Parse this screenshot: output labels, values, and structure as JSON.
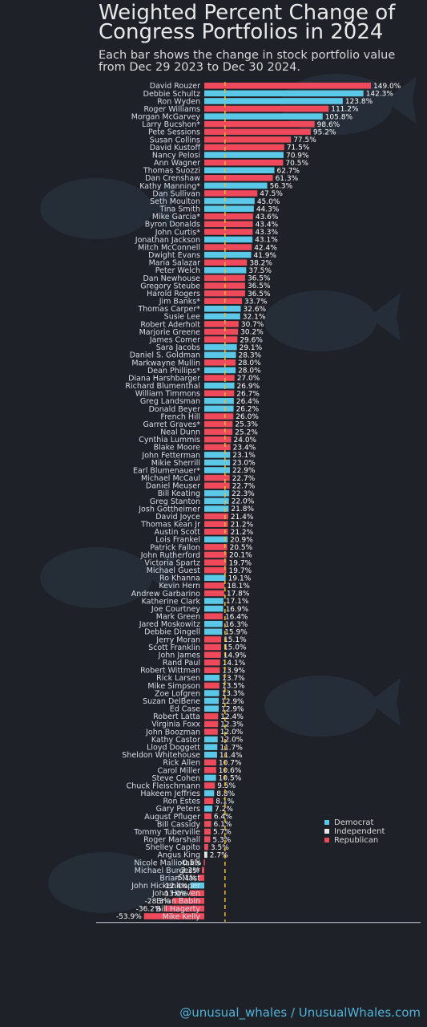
{
  "title": "Weighted Percent Change of Congress Portfolios in 2024",
  "subtitle": "Each bar shows the change in stock portfolio value from Dec 29 2023 to Dec 30 2024.",
  "footer": "@unusual_whales / UnusualWhales.com",
  "colors": {
    "Democrat": "#5bc8e8",
    "Independent": "#e8e8e8",
    "Republican": "#ee4a5c",
    "mean_line": "#f0b83a",
    "background": "#1e2128"
  },
  "chart_data": {
    "type": "bar",
    "orientation": "horizontal",
    "xlim": [
      -60,
      152
    ],
    "mean_line_x": 18.5,
    "legend": {
      "position": "right",
      "entries": [
        {
          "label": "Democrat",
          "color": "#5bc8e8"
        },
        {
          "label": "Independent",
          "color": "#e8e8e8"
        },
        {
          "label": "Republican",
          "color": "#ee4a5c"
        }
      ]
    },
    "bars": [
      {
        "name": "David Rouzer",
        "value": 149.0,
        "label": "149.0%",
        "party": "Republican"
      },
      {
        "name": "Debbie Schultz",
        "value": 142.3,
        "label": "142.3%",
        "party": "Democrat"
      },
      {
        "name": "Ron Wyden",
        "value": 123.8,
        "label": "123.8%",
        "party": "Democrat"
      },
      {
        "name": "Roger Williams",
        "value": 111.2,
        "label": "111.2%",
        "party": "Republican"
      },
      {
        "name": "Morgan McGarvey",
        "value": 105.8,
        "label": "105.8%",
        "party": "Democrat"
      },
      {
        "name": "Larry Bucshon*",
        "value": 98.6,
        "label": "98.6%",
        "party": "Republican"
      },
      {
        "name": "Pete Sessions",
        "value": 95.2,
        "label": "95.2%",
        "party": "Republican"
      },
      {
        "name": "Susan Collins",
        "value": 77.5,
        "label": "77.5%",
        "party": "Republican"
      },
      {
        "name": "David Kustoff",
        "value": 71.5,
        "label": "71.5%",
        "party": "Republican"
      },
      {
        "name": "Nancy Pelosi",
        "value": 70.9,
        "label": "70.9%",
        "party": "Democrat"
      },
      {
        "name": "Ann Wagner",
        "value": 70.5,
        "label": "70.5%",
        "party": "Republican"
      },
      {
        "name": "Thomas Suozzi",
        "value": 62.7,
        "label": "62.7%",
        "party": "Democrat"
      },
      {
        "name": "Dan Crenshaw",
        "value": 61.3,
        "label": "61.3%",
        "party": "Republican"
      },
      {
        "name": "Kathy Manning*",
        "value": 56.3,
        "label": "56.3%",
        "party": "Democrat"
      },
      {
        "name": "Dan Sullivan",
        "value": 47.5,
        "label": "47.5%",
        "party": "Republican"
      },
      {
        "name": "Seth Moulton",
        "value": 45.0,
        "label": "45.0%",
        "party": "Democrat"
      },
      {
        "name": "Tina Smith",
        "value": 44.3,
        "label": "44.3%",
        "party": "Democrat"
      },
      {
        "name": "Mike Garcia*",
        "value": 43.6,
        "label": "43.6%",
        "party": "Republican"
      },
      {
        "name": "Byron Donalds",
        "value": 43.4,
        "label": "43.4%",
        "party": "Republican"
      },
      {
        "name": "John Curtis*",
        "value": 43.3,
        "label": "43.3%",
        "party": "Republican"
      },
      {
        "name": "Jonathan Jackson",
        "value": 43.1,
        "label": "43.1%",
        "party": "Democrat"
      },
      {
        "name": "Mitch McConnell",
        "value": 42.4,
        "label": "42.4%",
        "party": "Republican"
      },
      {
        "name": "Dwight Evans",
        "value": 41.9,
        "label": "41.9%",
        "party": "Democrat"
      },
      {
        "name": "Maria Salazar",
        "value": 38.2,
        "label": "38.2%",
        "party": "Republican"
      },
      {
        "name": "Peter Welch",
        "value": 37.5,
        "label": "37.5%",
        "party": "Democrat"
      },
      {
        "name": "Dan Newhouse",
        "value": 36.5,
        "label": "36.5%",
        "party": "Republican"
      },
      {
        "name": "Gregory Steube",
        "value": 36.5,
        "label": "36.5%",
        "party": "Republican"
      },
      {
        "name": "Harold Rogers",
        "value": 36.5,
        "label": "36.5%",
        "party": "Republican"
      },
      {
        "name": "Jim Banks*",
        "value": 33.7,
        "label": "33.7%",
        "party": "Republican"
      },
      {
        "name": "Thomas Carper*",
        "value": 32.6,
        "label": "32.6%",
        "party": "Democrat"
      },
      {
        "name": "Susie Lee",
        "value": 32.1,
        "label": "32.1%",
        "party": "Democrat"
      },
      {
        "name": "Robert Aderholt",
        "value": 30.7,
        "label": "30.7%",
        "party": "Republican"
      },
      {
        "name": "Marjorie Greene",
        "value": 30.2,
        "label": "30.2%",
        "party": "Republican"
      },
      {
        "name": "James Comer",
        "value": 29.6,
        "label": "29.6%",
        "party": "Republican"
      },
      {
        "name": "Sara Jacobs",
        "value": 29.1,
        "label": "29.1%",
        "party": "Democrat"
      },
      {
        "name": "Daniel S. Goldman",
        "value": 28.3,
        "label": "28.3%",
        "party": "Democrat"
      },
      {
        "name": "Markwayne Mullin",
        "value": 28.0,
        "label": "28.0%",
        "party": "Republican"
      },
      {
        "name": "Dean Phillips*",
        "value": 28.0,
        "label": "28.0%",
        "party": "Democrat"
      },
      {
        "name": "Diana Harshbarger",
        "value": 27.0,
        "label": "27.0%",
        "party": "Republican"
      },
      {
        "name": "Richard Blumenthal",
        "value": 26.9,
        "label": "26.9%",
        "party": "Democrat"
      },
      {
        "name": "William Timmons",
        "value": 26.7,
        "label": "26.7%",
        "party": "Republican"
      },
      {
        "name": "Greg Landsman",
        "value": 26.4,
        "label": "26.4%",
        "party": "Democrat"
      },
      {
        "name": "Donald Beyer",
        "value": 26.2,
        "label": "26.2%",
        "party": "Democrat"
      },
      {
        "name": "French Hill",
        "value": 26.0,
        "label": "26.0%",
        "party": "Republican"
      },
      {
        "name": "Garret Graves*",
        "value": 25.3,
        "label": "25.3%",
        "party": "Republican"
      },
      {
        "name": "Neal Dunn",
        "value": 25.2,
        "label": "25.2%",
        "party": "Republican"
      },
      {
        "name": "Cynthia Lummis",
        "value": 24.0,
        "label": "24.0%",
        "party": "Republican"
      },
      {
        "name": "Blake Moore",
        "value": 23.4,
        "label": "23.4%",
        "party": "Republican"
      },
      {
        "name": "John Fetterman",
        "value": 23.1,
        "label": "23.1%",
        "party": "Democrat"
      },
      {
        "name": "Mikie Sherrill",
        "value": 23.0,
        "label": "23.0%",
        "party": "Democrat"
      },
      {
        "name": "Earl Blumenauer*",
        "value": 22.9,
        "label": "22.9%",
        "party": "Democrat"
      },
      {
        "name": "Michael McCaul",
        "value": 22.7,
        "label": "22.7%",
        "party": "Republican"
      },
      {
        "name": "Daniel Meuser",
        "value": 22.7,
        "label": "22.7%",
        "party": "Republican"
      },
      {
        "name": "Bill Keating",
        "value": 22.3,
        "label": "22.3%",
        "party": "Democrat"
      },
      {
        "name": "Greg Stanton",
        "value": 22.0,
        "label": "22.0%",
        "party": "Democrat"
      },
      {
        "name": "Josh Gottheimer",
        "value": 21.8,
        "label": "21.8%",
        "party": "Democrat"
      },
      {
        "name": "David Joyce",
        "value": 21.4,
        "label": "21.4%",
        "party": "Republican"
      },
      {
        "name": "Thomas Kean Jr",
        "value": 21.2,
        "label": "21.2%",
        "party": "Republican"
      },
      {
        "name": "Austin Scott",
        "value": 21.2,
        "label": "21.2%",
        "party": "Republican"
      },
      {
        "name": "Lois Frankel",
        "value": 20.9,
        "label": "20.9%",
        "party": "Democrat"
      },
      {
        "name": "Patrick Fallon",
        "value": 20.5,
        "label": "20.5%",
        "party": "Republican"
      },
      {
        "name": "John Rutherford",
        "value": 20.1,
        "label": "20.1%",
        "party": "Republican"
      },
      {
        "name": "Victoria Spartz",
        "value": 19.7,
        "label": "19.7%",
        "party": "Republican"
      },
      {
        "name": "Michael Guest",
        "value": 19.7,
        "label": "19.7%",
        "party": "Republican"
      },
      {
        "name": "Ro Khanna",
        "value": 19.1,
        "label": "19.1%",
        "party": "Democrat"
      },
      {
        "name": "Kevin Hern",
        "value": 18.1,
        "label": "18.1%",
        "party": "Republican"
      },
      {
        "name": "Andrew Garbarino",
        "value": 17.8,
        "label": "17.8%",
        "party": "Republican"
      },
      {
        "name": "Katherine Clark",
        "value": 17.1,
        "label": "17.1%",
        "party": "Democrat"
      },
      {
        "name": "Joe Courtney",
        "value": 16.9,
        "label": "16.9%",
        "party": "Democrat"
      },
      {
        "name": "Mark Green",
        "value": 16.4,
        "label": "16.4%",
        "party": "Republican"
      },
      {
        "name": "Jared Moskowitz",
        "value": 16.3,
        "label": "16.3%",
        "party": "Democrat"
      },
      {
        "name": "Debbie Dingell",
        "value": 15.9,
        "label": "15.9%",
        "party": "Democrat"
      },
      {
        "name": "Jerry Moran",
        "value": 15.1,
        "label": "15.1%",
        "party": "Republican"
      },
      {
        "name": "Scott Franklin",
        "value": 15.0,
        "label": "15.0%",
        "party": "Republican"
      },
      {
        "name": "John James",
        "value": 14.9,
        "label": "14.9%",
        "party": "Republican"
      },
      {
        "name": "Rand Paul",
        "value": 14.1,
        "label": "14.1%",
        "party": "Republican"
      },
      {
        "name": "Robert Wittman",
        "value": 13.9,
        "label": "13.9%",
        "party": "Republican"
      },
      {
        "name": "Rick Larsen",
        "value": 13.7,
        "label": "13.7%",
        "party": "Democrat"
      },
      {
        "name": "Mike Simpson",
        "value": 13.5,
        "label": "13.5%",
        "party": "Republican"
      },
      {
        "name": "Zoe Lofgren",
        "value": 13.3,
        "label": "13.3%",
        "party": "Democrat"
      },
      {
        "name": "Suzan DelBene",
        "value": 12.9,
        "label": "12.9%",
        "party": "Democrat"
      },
      {
        "name": "Ed Case",
        "value": 12.9,
        "label": "12.9%",
        "party": "Democrat"
      },
      {
        "name": "Robert Latta",
        "value": 12.4,
        "label": "12.4%",
        "party": "Republican"
      },
      {
        "name": "Virginia Foxx",
        "value": 12.3,
        "label": "12.3%",
        "party": "Republican"
      },
      {
        "name": "John Boozman",
        "value": 12.0,
        "label": "12.0%",
        "party": "Republican"
      },
      {
        "name": "Kathy Castor",
        "value": 12.0,
        "label": "12.0%",
        "party": "Democrat"
      },
      {
        "name": "Lloyd Doggett",
        "value": 11.7,
        "label": "11.7%",
        "party": "Democrat"
      },
      {
        "name": "Sheldon Whitehouse",
        "value": 11.4,
        "label": "11.4%",
        "party": "Democrat"
      },
      {
        "name": "Rick Allen",
        "value": 10.7,
        "label": "10.7%",
        "party": "Republican"
      },
      {
        "name": "Carol Miller",
        "value": 10.6,
        "label": "10.6%",
        "party": "Republican"
      },
      {
        "name": "Steve Cohen",
        "value": 10.5,
        "label": "10.5%",
        "party": "Democrat"
      },
      {
        "name": "Chuck Fleischmann",
        "value": 9.5,
        "label": "9.5%",
        "party": "Republican"
      },
      {
        "name": "Hakeem Jeffries",
        "value": 8.8,
        "label": "8.8%",
        "party": "Democrat"
      },
      {
        "name": "Ron Estes",
        "value": 8.1,
        "label": "8.1%",
        "party": "Republican"
      },
      {
        "name": "Gary Peters",
        "value": 7.2,
        "label": "7.2%",
        "party": "Democrat"
      },
      {
        "name": "August Pfluger",
        "value": 6.4,
        "label": "6.4%",
        "party": "Republican"
      },
      {
        "name": "Bill Cassidy",
        "value": 6.1,
        "label": "6.1%",
        "party": "Republican"
      },
      {
        "name": "Tommy Tuberville",
        "value": 5.7,
        "label": "5.7%",
        "party": "Republican"
      },
      {
        "name": "Roger Marshall",
        "value": 5.3,
        "label": "5.3%",
        "party": "Republican"
      },
      {
        "name": "Shelley Capito",
        "value": 3.5,
        "label": "3.5%",
        "party": "Republican"
      },
      {
        "name": "Angus King",
        "value": 2.7,
        "label": "2.7%",
        "party": "Independent"
      },
      {
        "name": "Nicole Malliotakis",
        "value": -0.5,
        "label": "-0.5%",
        "party": "Republican"
      },
      {
        "name": "Michael Burgess*",
        "value": -2.2,
        "label": "-2.2%",
        "party": "Republican"
      },
      {
        "name": "Brian Mast",
        "value": -5.1,
        "label": "-5.1%",
        "party": "Republican"
      },
      {
        "name": "John Hickenlooper",
        "value": -12.4,
        "label": "-12.4%",
        "party": "Democrat"
      },
      {
        "name": "John Hoeven",
        "value": -13.0,
        "label": "-13.0%",
        "party": "Republican"
      },
      {
        "name": "Brian Babin",
        "value": -28.3,
        "label": "-28.3%",
        "party": "Republican"
      },
      {
        "name": "Bill Hagerty",
        "value": -36.2,
        "label": "-36.2%",
        "party": "Republican"
      },
      {
        "name": "Mike Kelly",
        "value": -53.9,
        "label": "-53.9%",
        "party": "Republican"
      }
    ]
  }
}
